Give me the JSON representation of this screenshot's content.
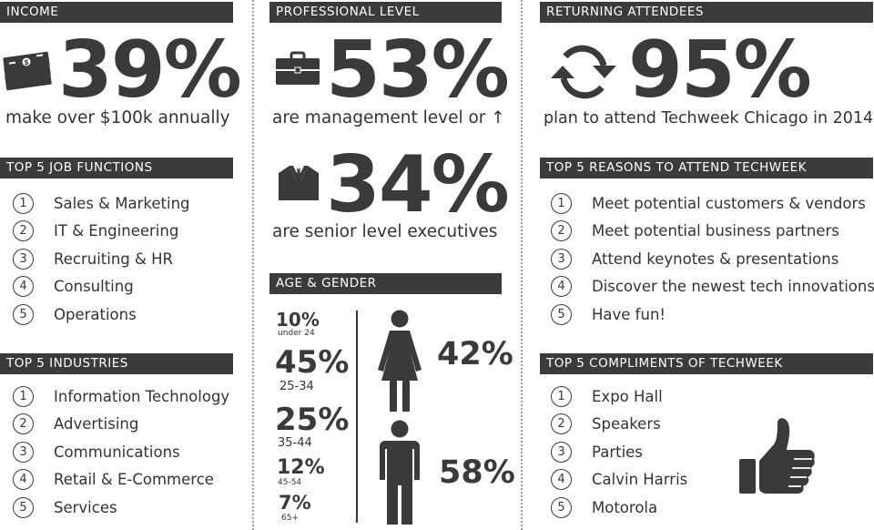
{
  "income": {
    "header": "INCOME",
    "percent": "39%",
    "caption": "make over $100k annually",
    "icon": "money-stack-icon"
  },
  "job_functions": {
    "header": "TOP 5 JOB FUNCTIONS",
    "items": [
      "Sales & Marketing",
      "IT & Engineering",
      "Recruiting & HR",
      "Consulting",
      "Operations"
    ]
  },
  "industries": {
    "header": "TOP 5 INDUSTRIES",
    "items": [
      "Information Technology",
      "Advertising",
      "Communications",
      "Retail & E-Commerce",
      "Services"
    ]
  },
  "professional": {
    "header": "PROFESSIONAL LEVEL",
    "management_percent": "53%",
    "management_caption": "are management level or ↑",
    "senior_percent": "34%",
    "senior_caption": "are senior level executives",
    "icons": [
      "briefcase-icon",
      "business-suit-icon"
    ]
  },
  "age_gender": {
    "header": "AGE & GENDER",
    "ages": [
      {
        "percent": "10%",
        "label": "under 24"
      },
      {
        "percent": "45%",
        "label": "25-34"
      },
      {
        "percent": "25%",
        "label": "35-44"
      },
      {
        "percent": "12%",
        "label": "45-54"
      },
      {
        "percent": "7%",
        "label": "65+"
      }
    ],
    "female_percent": "42%",
    "male_percent": "58%"
  },
  "returning": {
    "header": "RETURNING ATTENDEES",
    "percent": "95%",
    "caption": "plan to attend Techweek Chicago in 2014",
    "icon": "refresh-arrows-icon"
  },
  "reasons": {
    "header": "TOP 5 REASONS TO ATTEND TECHWEEK",
    "items": [
      "Meet potential customers & vendors",
      "Meet potential business partners",
      "Attend keynotes & presentations",
      "Discover the newest tech innovations",
      "Have fun!"
    ]
  },
  "compliments": {
    "header": "TOP 5 COMPLIMENTS OF TECHWEEK",
    "items": [
      "Expo Hall",
      "Speakers",
      "Parties",
      "Calvin Harris",
      "Motorola"
    ],
    "icon": "thumbs-up-icon"
  },
  "list_numbers": [
    "1",
    "2",
    "3",
    "4",
    "5"
  ],
  "colors": {
    "text": "#3a3a3a",
    "header_bg": "#3b3b3d",
    "header_text": "#ffffff"
  }
}
